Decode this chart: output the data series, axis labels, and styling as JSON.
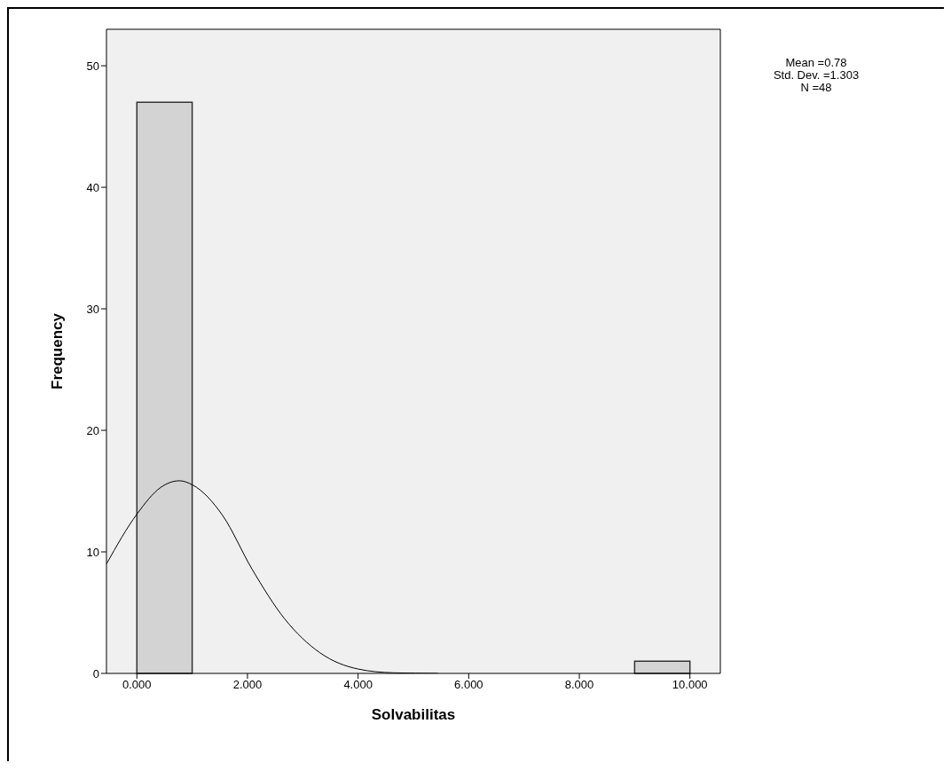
{
  "chart_data": {
    "type": "histogram",
    "xlabel": "Solvabilitas",
    "ylabel": "Frequency",
    "color": "#d3d3d3",
    "bins": [
      0,
      1,
      2,
      3,
      4,
      5,
      6,
      7,
      8,
      9,
      10
    ],
    "values": [
      47,
      0,
      0,
      0,
      0,
      0,
      0,
      0,
      0,
      1
    ],
    "xlim": [
      -0.55,
      10.55
    ],
    "xticks": [
      {
        "value": 0,
        "label": "0.000"
      },
      {
        "value": 2,
        "label": "2.000"
      },
      {
        "value": 4,
        "label": "4.000"
      },
      {
        "value": 6,
        "label": "6.000"
      },
      {
        "value": 8,
        "label": "8.000"
      },
      {
        "value": 10,
        "label": "10.000"
      }
    ],
    "ylim": [
      0,
      53
    ],
    "yticks": [
      0,
      10,
      20,
      30,
      40,
      50
    ],
    "grid": false,
    "marker": "none",
    "series": [
      {
        "type": "line",
        "color": "#000000",
        "x": [
          -0.55,
          0,
          0.43,
          0.77,
          1.01,
          1.55,
          2.08,
          2.67,
          3.31,
          4.0,
          4.64,
          5.44
        ],
        "values": [
          9.0,
          13.1,
          15.3,
          15.85,
          15.5,
          13.0,
          8.6,
          4.5,
          1.7,
          0.36,
          0.05,
          0
        ]
      }
    ],
    "annotations": [
      "Mean =0.78",
      "Std. Dev. =1.303",
      "N =48"
    ]
  }
}
